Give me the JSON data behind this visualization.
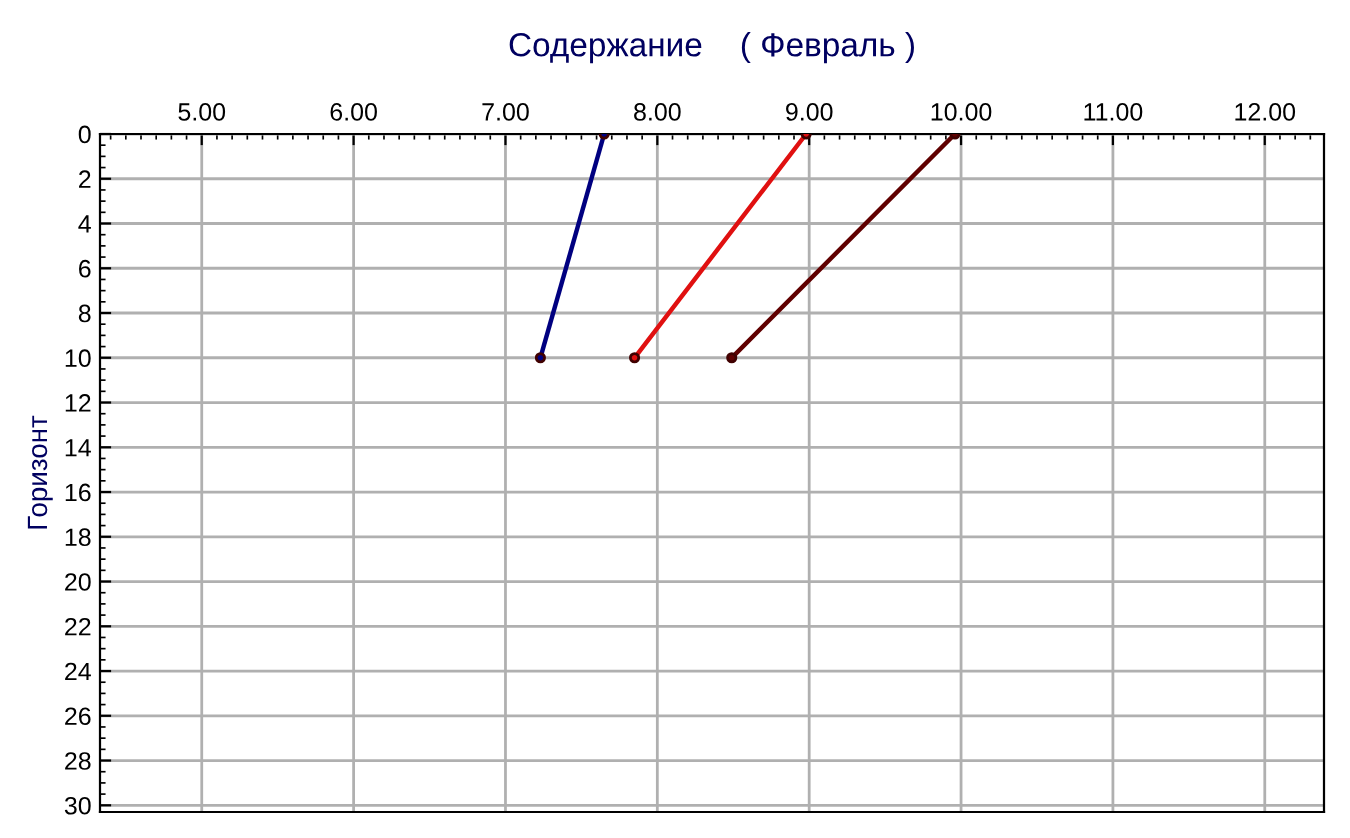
{
  "chart_data": {
    "type": "line",
    "title": "Содержание    ( Февраль )",
    "ylabel": "Горизонт",
    "xlim": [
      4.33,
      12.39
    ],
    "ylim": [
      30.3,
      0
    ],
    "xticks": [
      {
        "value": 5,
        "label": "5.00"
      },
      {
        "value": 6,
        "label": "6.00"
      },
      {
        "value": 7,
        "label": "7.00"
      },
      {
        "value": 8,
        "label": "8.00"
      },
      {
        "value": 9,
        "label": "9.00"
      },
      {
        "value": 10,
        "label": "10.00"
      },
      {
        "value": 11,
        "label": "11.00"
      },
      {
        "value": 12,
        "label": "12.00"
      }
    ],
    "yticks": [
      0,
      2,
      4,
      6,
      8,
      10,
      12,
      14,
      16,
      18,
      20,
      22,
      24,
      26,
      28,
      30
    ],
    "grid": true,
    "marker": "circle",
    "line_style": "solid",
    "series": [
      {
        "color": "#000080",
        "x": [
          7.65,
          7.23
        ],
        "values": [
          0,
          10
        ]
      },
      {
        "color": "#e01010",
        "x": [
          8.98,
          7.85
        ],
        "values": [
          0,
          10
        ]
      },
      {
        "color": "#600000",
        "x": [
          9.96,
          8.49
        ],
        "values": [
          0,
          10
        ]
      }
    ]
  }
}
